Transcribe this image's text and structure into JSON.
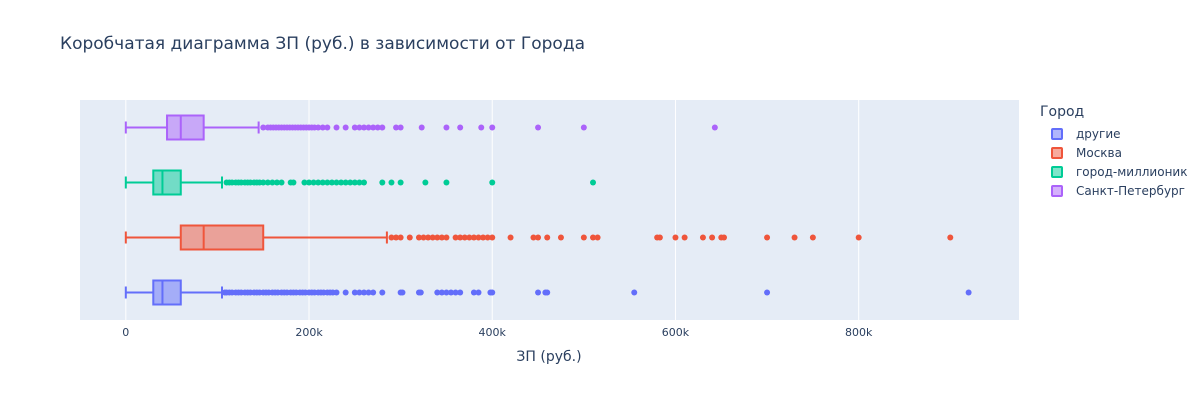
{
  "chart_data": {
    "type": "box",
    "orientation": "horizontal",
    "title": "Коробчатая диаграмма ЗП (руб.) в зависимости от Города",
    "xlabel": "ЗП (руб.)",
    "ylabel": "",
    "xlim": [
      -50000,
      975000
    ],
    "xticks": [
      0,
      200000,
      400000,
      600000,
      800000
    ],
    "xtick_labels": [
      "0",
      "200k",
      "400k",
      "600k",
      "800k"
    ],
    "legend_title": "Город",
    "legend_position": "right",
    "grid": true,
    "series": [
      {
        "name": "другие",
        "color": "#636efa",
        "fill": "rgba(99,110,250,0.5)",
        "min": 0,
        "q1": 30000,
        "median": 40000,
        "q3": 60000,
        "upper_fence": 105000,
        "outliers": [
          108000,
          110000,
          113000,
          116000,
          120000,
          123000,
          126000,
          130000,
          133000,
          136000,
          140000,
          143000,
          146000,
          150000,
          153000,
          156000,
          160000,
          163000,
          166000,
          170000,
          173000,
          176000,
          180000,
          183000,
          186000,
          190000,
          193000,
          196000,
          200000,
          203000,
          206000,
          210000,
          213000,
          216000,
          220000,
          223000,
          226000,
          230000,
          240000,
          250000,
          255000,
          260000,
          265000,
          270000,
          280000,
          300000,
          302000,
          320000,
          322000,
          340000,
          345000,
          350000,
          355000,
          360000,
          365000,
          380000,
          385000,
          398000,
          400000,
          450000,
          458000,
          460000,
          555000,
          700000,
          920000
        ]
      },
      {
        "name": "Москва",
        "color": "#ef553b",
        "fill": "rgba(239,85,59,0.5)",
        "min": 0,
        "q1": 60000,
        "median": 85000,
        "q3": 150000,
        "upper_fence": 285000,
        "outliers": [
          290000,
          295000,
          300000,
          310000,
          320000,
          325000,
          330000,
          335000,
          340000,
          345000,
          350000,
          360000,
          365000,
          370000,
          375000,
          380000,
          385000,
          390000,
          395000,
          400000,
          420000,
          445000,
          450000,
          460000,
          475000,
          500000,
          510000,
          515000,
          580000,
          583000,
          600000,
          610000,
          630000,
          640000,
          650000,
          653000,
          700000,
          730000,
          750000,
          800000,
          900000
        ]
      },
      {
        "name": "город-миллионик",
        "color": "#00cc96",
        "fill": "rgba(0,204,150,0.5)",
        "min": 0,
        "q1": 30000,
        "median": 40000,
        "q3": 60000,
        "upper_fence": 105000,
        "outliers": [
          110000,
          113000,
          116000,
          120000,
          123000,
          126000,
          130000,
          133000,
          136000,
          140000,
          143000,
          146000,
          150000,
          155000,
          160000,
          165000,
          170000,
          180000,
          183000,
          195000,
          200000,
          205000,
          210000,
          215000,
          220000,
          225000,
          230000,
          235000,
          240000,
          245000,
          250000,
          255000,
          260000,
          280000,
          290000,
          300000,
          327000,
          350000,
          400000,
          510000
        ]
      },
      {
        "name": "Санкт-Петербург",
        "color": "#ab63fa",
        "fill": "rgba(171,99,250,0.5)",
        "min": 0,
        "q1": 45000,
        "median": 60000,
        "q3": 85000,
        "upper_fence": 145000,
        "outliers": [
          150000,
          155000,
          158000,
          161000,
          164000,
          167000,
          170000,
          173000,
          176000,
          179000,
          182000,
          185000,
          188000,
          191000,
          194000,
          197000,
          200000,
          203000,
          206000,
          210000,
          215000,
          220000,
          230000,
          240000,
          250000,
          255000,
          260000,
          265000,
          270000,
          275000,
          280000,
          295000,
          300000,
          323000,
          350000,
          365000,
          388000,
          400000,
          450000,
          500000,
          643000
        ]
      }
    ]
  }
}
